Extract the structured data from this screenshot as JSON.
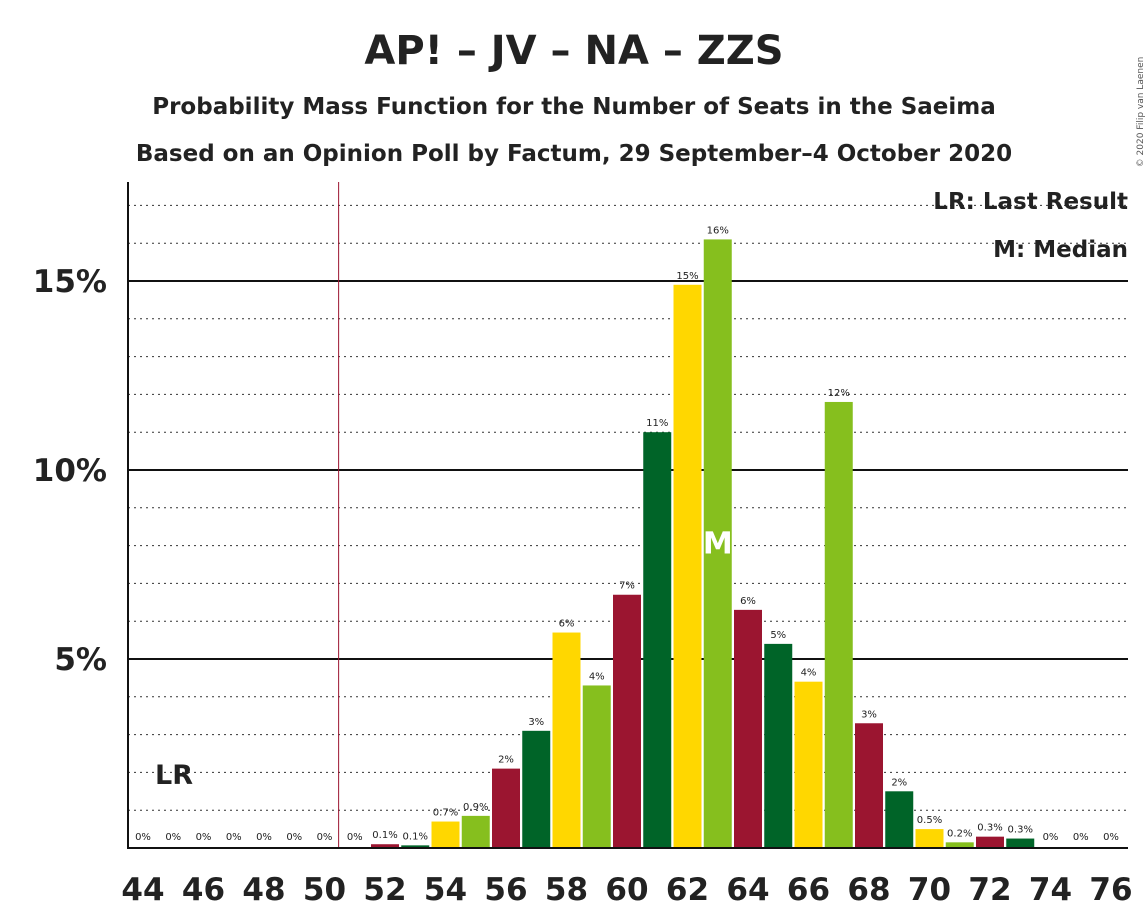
{
  "chart_data": {
    "type": "bar",
    "title": "AP! – JV – NA – ZZS",
    "subtitle": "Probability Mass Function for the Number of Seats in the Saeima",
    "subtitle2": "Based on an Opinion Poll by Factum, 29 September–4 October 2020",
    "copyright": "© 2020 Filip van Laenen",
    "legend": {
      "lr": "LR: Last Result",
      "m": "M: Median"
    },
    "last_result": {
      "seat": 51,
      "label": "LR"
    },
    "median": {
      "seat": 63,
      "label": "M"
    },
    "ylim": [
      0,
      17.5
    ],
    "yticks": [
      {
        "value": 5,
        "label": "5%"
      },
      {
        "value": 10,
        "label": "10%"
      },
      {
        "value": 15,
        "label": "15%"
      }
    ],
    "minor_grid_step": 1,
    "xticks": [
      "44",
      "46",
      "48",
      "50",
      "52",
      "54",
      "56",
      "58",
      "60",
      "62",
      "64",
      "66",
      "68",
      "70",
      "72",
      "74",
      "76"
    ],
    "xlim": [
      44,
      76
    ],
    "colors": [
      "#9b1530",
      "#006428",
      "#ffd700",
      "#86bf1e"
    ],
    "bars": [
      {
        "seat": 44,
        "value": 0,
        "label": "0%"
      },
      {
        "seat": 45,
        "value": 0,
        "label": "0%"
      },
      {
        "seat": 46,
        "value": 0,
        "label": "0%"
      },
      {
        "seat": 47,
        "value": 0,
        "label": "0%"
      },
      {
        "seat": 48,
        "value": 0,
        "label": "0%"
      },
      {
        "seat": 49,
        "value": 0,
        "label": "0%"
      },
      {
        "seat": 50,
        "value": 0,
        "label": "0%"
      },
      {
        "seat": 51,
        "value": 0,
        "label": "0%"
      },
      {
        "seat": 52,
        "value": 0.1,
        "label": "0.1%"
      },
      {
        "seat": 53,
        "value": 0.07,
        "label": "0.1%"
      },
      {
        "seat": 54,
        "value": 0.7,
        "label": "0.7%"
      },
      {
        "seat": 55,
        "value": 0.85,
        "label": "0.9%"
      },
      {
        "seat": 56,
        "value": 2.1,
        "label": "2%"
      },
      {
        "seat": 57,
        "value": 3.1,
        "label": "3%"
      },
      {
        "seat": 58,
        "value": 5.7,
        "label": "6%"
      },
      {
        "seat": 59,
        "value": 4.3,
        "label": "4%"
      },
      {
        "seat": 60,
        "value": 6.7,
        "label": "7%"
      },
      {
        "seat": 61,
        "value": 11.0,
        "label": "11%"
      },
      {
        "seat": 62,
        "value": 14.9,
        "label": "15%"
      },
      {
        "seat": 63,
        "value": 16.1,
        "label": "16%"
      },
      {
        "seat": 64,
        "value": 6.3,
        "label": "6%"
      },
      {
        "seat": 65,
        "value": 5.4,
        "label": "5%"
      },
      {
        "seat": 66,
        "value": 4.4,
        "label": "4%"
      },
      {
        "seat": 67,
        "value": 11.8,
        "label": "12%"
      },
      {
        "seat": 68,
        "value": 3.3,
        "label": "3%"
      },
      {
        "seat": 69,
        "value": 1.5,
        "label": "2%"
      },
      {
        "seat": 70,
        "value": 0.5,
        "label": "0.5%"
      },
      {
        "seat": 71,
        "value": 0.15,
        "label": "0.2%"
      },
      {
        "seat": 72,
        "value": 0.3,
        "label": "0.3%"
      },
      {
        "seat": 73,
        "value": 0.25,
        "label": "0.3%"
      },
      {
        "seat": 74,
        "value": 0,
        "label": "0%"
      },
      {
        "seat": 75,
        "value": 0,
        "label": "0%"
      },
      {
        "seat": 76,
        "value": 0,
        "label": "0%"
      }
    ]
  }
}
